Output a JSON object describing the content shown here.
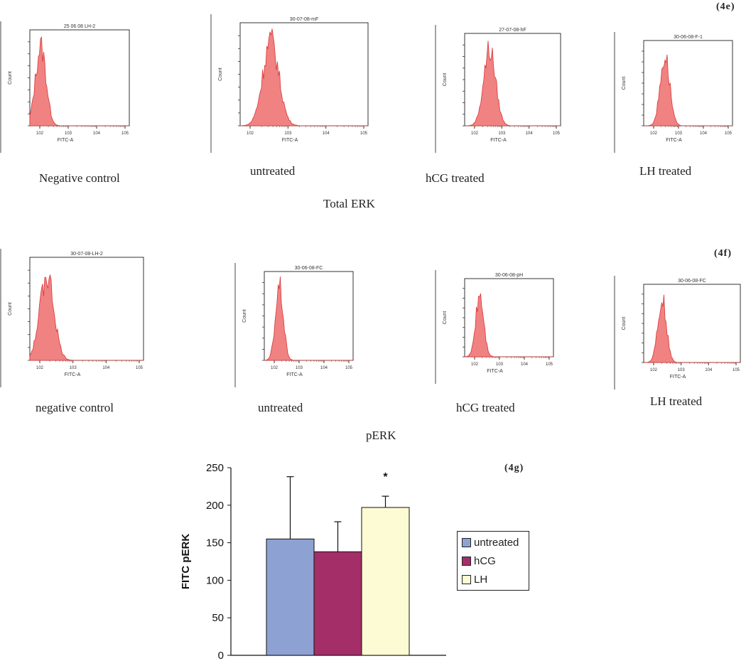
{
  "panels": {
    "e": {
      "tag": "(4e)",
      "title": "Total ERK",
      "histograms": [
        {
          "caption": "Negative control",
          "file_label": "25 06 08 LH-2",
          "y_axis": "Count",
          "x_axis": "FITC-A",
          "peak": 0.11,
          "width": 0.06
        },
        {
          "caption": "untreated",
          "file_label": "30-07-08-mF",
          "y_axis": "Count",
          "x_axis": "FITC-A",
          "peak": 0.24,
          "width": 0.07
        },
        {
          "caption": "hCG treated",
          "file_label": "27-07-08-hF",
          "y_axis": "Count",
          "x_axis": "FITC-A",
          "peak": 0.26,
          "width": 0.07
        },
        {
          "caption": "LH treated",
          "file_label": "30-06-08-F-1",
          "y_axis": "Count",
          "x_axis": "FITC-A",
          "peak": 0.24,
          "width": 0.06
        }
      ]
    },
    "f": {
      "tag": "(4f)",
      "title": "pERK",
      "histograms": [
        {
          "caption": "negative control",
          "file_label": "30-07-08-LH-2",
          "y_axis": "Count",
          "x_axis": "FITC-A",
          "peak": 0.15,
          "width": 0.07
        },
        {
          "caption": "untreated",
          "file_label": "30-06-08-FC",
          "y_axis": "Count",
          "x_axis": "FITC-A",
          "peak": 0.17,
          "width": 0.05
        },
        {
          "caption": "hCG treated",
          "file_label": "30-06-08-pH",
          "y_axis": "Count",
          "x_axis": "FITC-A",
          "peak": 0.17,
          "width": 0.05
        },
        {
          "caption": "LH treated",
          "file_label": "30-06-08-FC",
          "y_axis": "Count",
          "x_axis": "FITC-A",
          "peak": 0.19,
          "width": 0.05
        }
      ]
    }
  },
  "chart_data": {
    "type": "bar",
    "tag": "(4g)",
    "ylabel": "FITC pERK",
    "ylim": [
      0,
      250
    ],
    "yticks": [
      0,
      50,
      100,
      150,
      200,
      250
    ],
    "categories": [
      "untreated",
      "hCG",
      "LH"
    ],
    "values": [
      155,
      138,
      197
    ],
    "error_upper": [
      83,
      40,
      15
    ],
    "colors": [
      "#8ea1d3",
      "#a32e68",
      "#fdfbd3"
    ],
    "annotation": "*",
    "annotation_on": "LH",
    "legend": [
      "untreated",
      "hCG",
      "LH"
    ]
  }
}
